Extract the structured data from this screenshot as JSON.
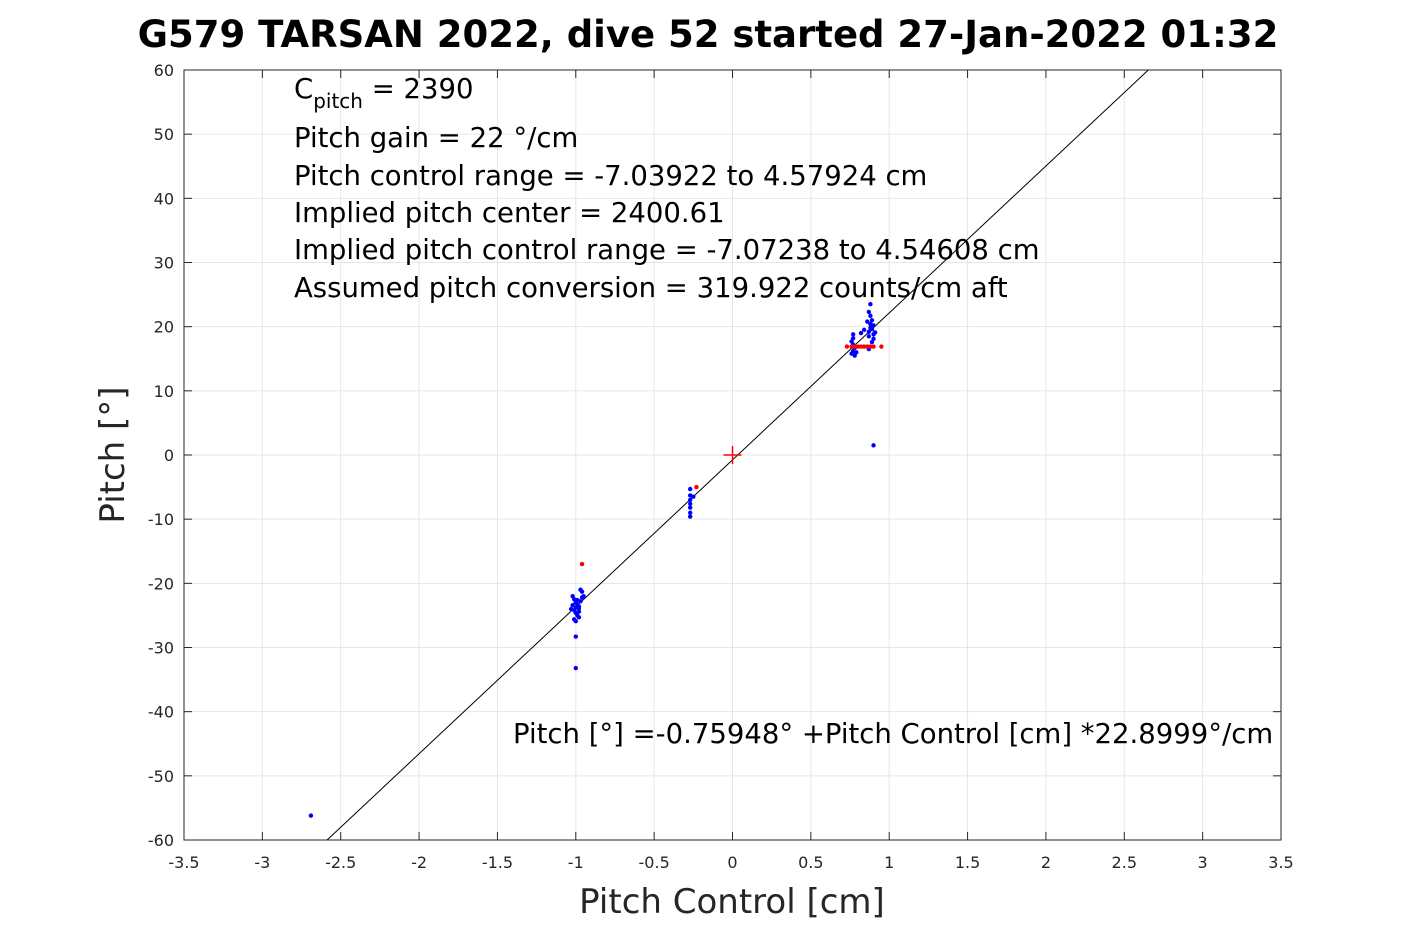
{
  "chart_data": {
    "type": "scatter",
    "title": "G579 TARSAN 2022, dive 52 started 27-Jan-2022 01:32",
    "xlabel": "Pitch Control [cm]",
    "ylabel": "Pitch [°]",
    "xlim": [
      -3.5,
      3.5
    ],
    "ylim": [
      -60,
      60
    ],
    "grid": true,
    "x_ticks": [
      -3.5,
      -3,
      -2.5,
      -2,
      -1.5,
      -1,
      -0.5,
      0,
      0.5,
      1,
      1.5,
      2,
      2.5,
      3,
      3.5
    ],
    "x_tick_labels": [
      "-3.5",
      "-3",
      "-2.5",
      "-2",
      "-1.5",
      "-1",
      "-0.5",
      "0",
      "0.5",
      "1",
      "1.5",
      "2",
      "2.5",
      "3",
      "3.5"
    ],
    "y_ticks": [
      -60,
      -50,
      -40,
      -30,
      -20,
      -10,
      0,
      10,
      20,
      30,
      40,
      50,
      60
    ],
    "y_tick_labels": [
      "-60",
      "-50",
      "-40",
      "-30",
      "-20",
      "-10",
      "0",
      "10",
      "20",
      "30",
      "40",
      "50",
      "60"
    ],
    "colors": {
      "blue_points": "#0000ff",
      "red_points": "#ff0000",
      "fit_line": "#000000",
      "grid": "#e6e6e6",
      "axes": "#262626"
    },
    "annotations": {
      "c_pitch_main": "C",
      "c_pitch_sub": "pitch",
      "c_pitch_rest": " = 2390",
      "lines": [
        "Pitch gain = 22 °/cm",
        "Pitch control range = -7.03922 to 4.57924 cm",
        "Implied pitch center = 2400.61",
        "Implied pitch control range = -7.07238 to 4.54608 cm",
        "Assumed pitch conversion = 319.922 counts/cm aft"
      ],
      "fit_equation": "Pitch [°] =-0.75948° +Pitch Control [cm] *22.8999°/cm"
    },
    "fit": {
      "intercept": -0.75948,
      "slope": 22.8999
    },
    "center_marker": {
      "x": 0,
      "y": 0,
      "color": "#ff0000",
      "shape": "plus"
    },
    "series": [
      {
        "color": "#0000ff",
        "points": [
          [
            -2.69,
            -56.2
          ],
          [
            -1.0,
            -33.2
          ],
          [
            -1.0,
            -28.3
          ],
          [
            -1.02,
            -22.0
          ],
          [
            -1.01,
            -22.5
          ],
          [
            -1.0,
            -23.0
          ],
          [
            -0.99,
            -23.3
          ],
          [
            -1.0,
            -23.8
          ],
          [
            -1.01,
            -24.2
          ],
          [
            -1.0,
            -24.6
          ],
          [
            -0.99,
            -25.0
          ],
          [
            -0.98,
            -23.6
          ],
          [
            -0.97,
            -22.8
          ],
          [
            -0.98,
            -24.4
          ],
          [
            -1.02,
            -23.4
          ],
          [
            -1.03,
            -24.0
          ],
          [
            -0.96,
            -22.2
          ],
          [
            -0.96,
            -21.3
          ],
          [
            -0.95,
            -22.0
          ],
          [
            -0.97,
            -21.0
          ],
          [
            -0.98,
            -25.3
          ],
          [
            -1.01,
            -25.6
          ],
          [
            -1.0,
            -25.9
          ],
          [
            -0.99,
            -22.6
          ],
          [
            -0.98,
            -23.9
          ],
          [
            -0.27,
            -5.3
          ],
          [
            -0.27,
            -6.3
          ],
          [
            -0.27,
            -7.0
          ],
          [
            -0.27,
            -7.6
          ],
          [
            -0.27,
            -8.2
          ],
          [
            -0.27,
            -9.0
          ],
          [
            -0.27,
            -9.6
          ],
          [
            -0.25,
            -6.5
          ],
          [
            0.76,
            15.8
          ],
          [
            0.77,
            16.2
          ],
          [
            0.78,
            16.7
          ],
          [
            0.77,
            17.2
          ],
          [
            0.76,
            17.7
          ],
          [
            0.77,
            18.2
          ],
          [
            0.77,
            18.8
          ],
          [
            0.78,
            15.5
          ],
          [
            0.79,
            16.0
          ],
          [
            0.82,
            19.0
          ],
          [
            0.84,
            19.5
          ],
          [
            0.87,
            18.5
          ],
          [
            0.87,
            19.2
          ],
          [
            0.88,
            19.8
          ],
          [
            0.88,
            20.4
          ],
          [
            0.89,
            21.0
          ],
          [
            0.88,
            21.7
          ],
          [
            0.87,
            22.3
          ],
          [
            0.88,
            23.5
          ],
          [
            0.89,
            17.6
          ],
          [
            0.9,
            18.1
          ],
          [
            0.9,
            18.8
          ],
          [
            0.89,
            19.6
          ],
          [
            0.9,
            20.2
          ],
          [
            0.91,
            19.1
          ],
          [
            0.86,
            20.8
          ],
          [
            0.87,
            16.5
          ],
          [
            0.9,
            1.5
          ]
        ]
      },
      {
        "color": "#ff0000",
        "points": [
          [
            -0.96,
            -17.0
          ],
          [
            -0.23,
            -5.0
          ],
          [
            0.73,
            16.9
          ],
          [
            0.76,
            16.9
          ],
          [
            0.78,
            16.9
          ],
          [
            0.8,
            16.9
          ],
          [
            0.82,
            16.9
          ],
          [
            0.84,
            16.9
          ],
          [
            0.86,
            16.9
          ],
          [
            0.88,
            16.9
          ],
          [
            0.9,
            16.9
          ],
          [
            0.95,
            16.9
          ]
        ]
      }
    ]
  }
}
